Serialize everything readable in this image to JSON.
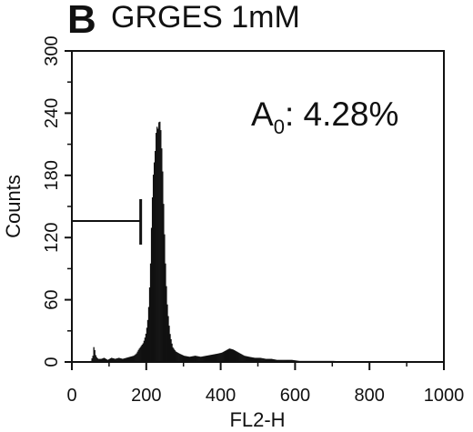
{
  "panel_label": "B",
  "chart_data": {
    "type": "histogram",
    "title": "GRGES 1mM",
    "annotation": {
      "label_main": "A",
      "label_sub": "0",
      "label_rest": ": 4.28%"
    },
    "xlabel": "FL2-H",
    "ylabel": "Counts",
    "xlim": [
      0,
      1000
    ],
    "ylim": [
      0,
      300
    ],
    "x_ticks": [
      0,
      200,
      400,
      600,
      800,
      1000
    ],
    "y_ticks": [
      0,
      60,
      120,
      180,
      240,
      300
    ],
    "grid": false,
    "gate": {
      "x_start": 0,
      "x_end": 185,
      "y": 136
    },
    "bins": [
      [
        50,
        1
      ],
      [
        55,
        6
      ],
      [
        58,
        16
      ],
      [
        62,
        7
      ],
      [
        66,
        4
      ],
      [
        70,
        3
      ],
      [
        78,
        3
      ],
      [
        85,
        4
      ],
      [
        95,
        2
      ],
      [
        105,
        4
      ],
      [
        115,
        3
      ],
      [
        125,
        4
      ],
      [
        135,
        3
      ],
      [
        145,
        4
      ],
      [
        155,
        5
      ],
      [
        165,
        6
      ],
      [
        172,
        8
      ],
      [
        178,
        12
      ],
      [
        184,
        15
      ],
      [
        190,
        18
      ],
      [
        194,
        22
      ],
      [
        198,
        28
      ],
      [
        202,
        38
      ],
      [
        206,
        58
      ],
      [
        210,
        95
      ],
      [
        214,
        150
      ],
      [
        218,
        185
      ],
      [
        222,
        200
      ],
      [
        226,
        228
      ],
      [
        230,
        225
      ],
      [
        234,
        235
      ],
      [
        238,
        222
      ],
      [
        242,
        190
      ],
      [
        246,
        140
      ],
      [
        250,
        95
      ],
      [
        254,
        60
      ],
      [
        258,
        42
      ],
      [
        262,
        28
      ],
      [
        266,
        20
      ],
      [
        270,
        14
      ],
      [
        278,
        10
      ],
      [
        288,
        8
      ],
      [
        300,
        6
      ],
      [
        315,
        5
      ],
      [
        330,
        6
      ],
      [
        345,
        5
      ],
      [
        360,
        6
      ],
      [
        375,
        7
      ],
      [
        390,
        8
      ],
      [
        402,
        9
      ],
      [
        412,
        11
      ],
      [
        422,
        13
      ],
      [
        432,
        12
      ],
      [
        442,
        10
      ],
      [
        452,
        8
      ],
      [
        462,
        6
      ],
      [
        475,
        5
      ],
      [
        490,
        4
      ],
      [
        505,
        4
      ],
      [
        520,
        3
      ],
      [
        535,
        3
      ],
      [
        550,
        2
      ],
      [
        570,
        2
      ],
      [
        590,
        2
      ],
      [
        610,
        1
      ],
      [
        640,
        1
      ],
      [
        670,
        1
      ],
      [
        700,
        1
      ],
      [
        740,
        0.5
      ],
      [
        800,
        0.5
      ],
      [
        880,
        0.5
      ],
      [
        905,
        0
      ]
    ]
  }
}
